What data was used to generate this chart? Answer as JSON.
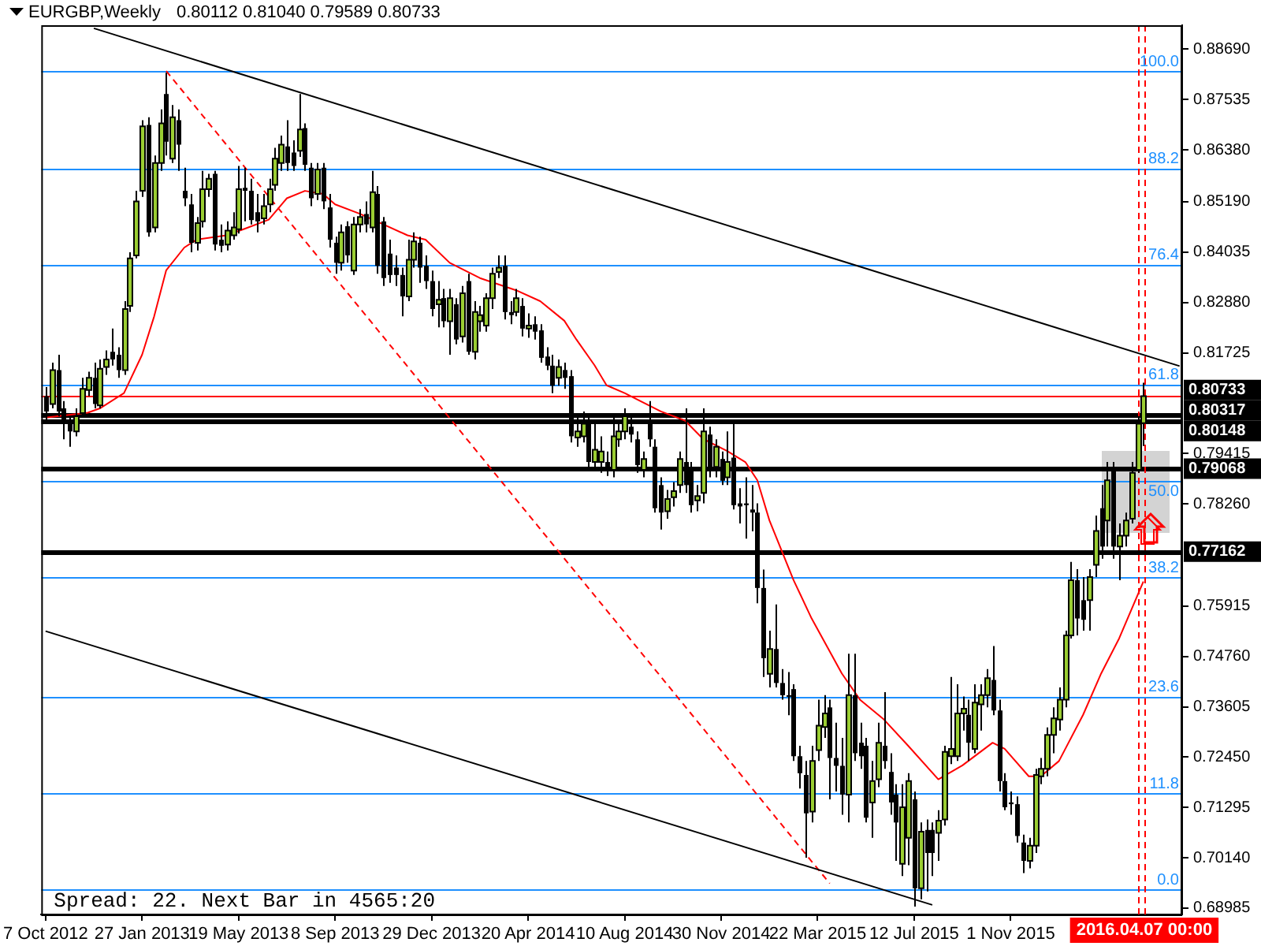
{
  "chart_data": {
    "type": "candlestick",
    "title": "EURGBP,Weekly",
    "subtitle": "0.80112 0.81040 0.79589 0.80733",
    "x": [
      "2012-10-07",
      "2012-10-14",
      "2012-10-21",
      "2012-10-28",
      "2012-11-04",
      "2012-11-11",
      "2012-11-18",
      "2012-11-25",
      "2012-12-02",
      "2012-12-09",
      "2012-12-16",
      "2012-12-23",
      "2012-12-30",
      "2013-01-06",
      "2013-01-13",
      "2013-01-20",
      "2013-01-27",
      "2013-02-03",
      "2013-02-10",
      "2013-02-17",
      "2013-02-24",
      "2013-03-03",
      "2013-03-10",
      "2013-03-17",
      "2013-03-24",
      "2013-03-31",
      "2013-04-07",
      "2013-04-14",
      "2013-04-21",
      "2013-04-28",
      "2013-05-05",
      "2013-05-12",
      "2013-05-19",
      "2013-05-26",
      "2013-06-02",
      "2013-06-09",
      "2013-06-16",
      "2013-06-23",
      "2013-06-30",
      "2013-07-07",
      "2013-07-14",
      "2013-07-21",
      "2013-07-28",
      "2013-08-04",
      "2013-08-11",
      "2013-08-18",
      "2013-08-25",
      "2013-09-01",
      "2013-09-08",
      "2013-09-15",
      "2013-09-22",
      "2013-09-29",
      "2013-10-06",
      "2013-10-13",
      "2013-10-20",
      "2013-10-27",
      "2013-11-03",
      "2013-11-10",
      "2013-11-17",
      "2013-11-24",
      "2013-12-01",
      "2013-12-08",
      "2013-12-15",
      "2013-12-22",
      "2013-12-29",
      "2014-01-05",
      "2014-01-12",
      "2014-01-19",
      "2014-01-26",
      "2014-02-02",
      "2014-02-09",
      "2014-02-16",
      "2014-02-23",
      "2014-03-02",
      "2014-03-09",
      "2014-03-16",
      "2014-03-23",
      "2014-03-30",
      "2014-04-06",
      "2014-04-13",
      "2014-04-20",
      "2014-04-27",
      "2014-05-04",
      "2014-05-11",
      "2014-05-18",
      "2014-05-25",
      "2014-06-01",
      "2014-06-08",
      "2014-06-15",
      "2014-06-22",
      "2014-06-29",
      "2014-07-06",
      "2014-07-13",
      "2014-07-20",
      "2014-07-27",
      "2014-08-03",
      "2014-08-10",
      "2014-08-17",
      "2014-08-24",
      "2014-08-31",
      "2014-09-07",
      "2014-09-14",
      "2014-09-21",
      "2014-09-28",
      "2014-10-05",
      "2014-10-12",
      "2014-10-19",
      "2014-10-26",
      "2014-11-02",
      "2014-11-09",
      "2014-11-16",
      "2014-11-23",
      "2014-11-30",
      "2014-12-07",
      "2014-12-14",
      "2014-12-21",
      "2014-12-28",
      "2015-01-04",
      "2015-01-11",
      "2015-01-18",
      "2015-01-25",
      "2015-02-01",
      "2015-02-08",
      "2015-02-15",
      "2015-02-22",
      "2015-03-01",
      "2015-03-08",
      "2015-03-15",
      "2015-03-22",
      "2015-03-29",
      "2015-04-05",
      "2015-04-12",
      "2015-04-19",
      "2015-04-26",
      "2015-05-03",
      "2015-05-10",
      "2015-05-17",
      "2015-05-24",
      "2015-05-31",
      "2015-06-07",
      "2015-06-14",
      "2015-06-21",
      "2015-06-28",
      "2015-07-05",
      "2015-07-12",
      "2015-07-19",
      "2015-07-26",
      "2015-08-02",
      "2015-08-09",
      "2015-08-16",
      "2015-08-23",
      "2015-08-30",
      "2015-09-06",
      "2015-09-13",
      "2015-09-20",
      "2015-09-27",
      "2015-10-04",
      "2015-10-11",
      "2015-10-18",
      "2015-10-25",
      "2015-11-01",
      "2015-11-08",
      "2015-11-15",
      "2015-11-22",
      "2015-11-29",
      "2015-12-06",
      "2015-12-13",
      "2015-12-20",
      "2015-12-27",
      "2016-01-03",
      "2016-01-10",
      "2016-01-17",
      "2016-01-24",
      "2016-01-31",
      "2016-02-07",
      "2016-02-14",
      "2016-02-21",
      "2016-02-28",
      "2016-03-06",
      "2016-03-13",
      "2016-03-20",
      "2016-03-27",
      "2016-04-03"
    ],
    "ohlc": [
      [
        0.8073,
        0.8094,
        0.8017,
        0.8038
      ],
      [
        0.8055,
        0.815,
        0.8045,
        0.8133
      ],
      [
        0.8133,
        0.8168,
        0.8027,
        0.8038
      ],
      [
        0.8045,
        0.8062,
        0.7974,
        0.801
      ],
      [
        0.801,
        0.8027,
        0.7957,
        0.7992
      ],
      [
        0.7992,
        0.8045,
        0.7981,
        0.8027
      ],
      [
        0.8034,
        0.8115,
        0.8024,
        0.809
      ],
      [
        0.8087,
        0.8129,
        0.8073,
        0.8115
      ],
      [
        0.8115,
        0.815,
        0.8045,
        0.8055
      ],
      [
        0.8052,
        0.8157,
        0.8045,
        0.8136
      ],
      [
        0.814,
        0.8178,
        0.8122,
        0.8157
      ],
      [
        0.8175,
        0.8228,
        0.8143,
        0.8157
      ],
      [
        0.8168,
        0.8185,
        0.8115,
        0.8133
      ],
      [
        0.8133,
        0.8291,
        0.8122,
        0.8273
      ],
      [
        0.828,
        0.8403,
        0.8266,
        0.8389
      ],
      [
        0.8396,
        0.8544,
        0.8389,
        0.852
      ],
      [
        0.8544,
        0.8706,
        0.853,
        0.8692
      ],
      [
        0.8695,
        0.8713,
        0.8439,
        0.8449
      ],
      [
        0.846,
        0.8625,
        0.8449,
        0.8608
      ],
      [
        0.8608,
        0.8731,
        0.859,
        0.8699
      ],
      [
        0.8766,
        0.8815,
        0.8625,
        0.8657
      ],
      [
        0.8618,
        0.8741,
        0.8608,
        0.8713
      ],
      [
        0.8706,
        0.8731,
        0.859,
        0.865
      ],
      [
        0.8544,
        0.8597,
        0.8509,
        0.8527
      ],
      [
        0.8513,
        0.8537,
        0.8403,
        0.8425
      ],
      [
        0.8425,
        0.8484,
        0.8407,
        0.847
      ],
      [
        0.8474,
        0.859,
        0.846,
        0.8548
      ],
      [
        0.8548,
        0.8583,
        0.853,
        0.8572
      ],
      [
        0.8583,
        0.859,
        0.8407,
        0.8421
      ],
      [
        0.8432,
        0.8467,
        0.8403,
        0.8418
      ],
      [
        0.8421,
        0.8474,
        0.8407,
        0.8453
      ],
      [
        0.8442,
        0.8495,
        0.8432,
        0.846
      ],
      [
        0.8456,
        0.8601,
        0.8446,
        0.8548
      ],
      [
        0.8551,
        0.8597,
        0.8474,
        0.8544
      ],
      [
        0.8544,
        0.8572,
        0.8467,
        0.8477
      ],
      [
        0.8495,
        0.8537,
        0.8449,
        0.8474
      ],
      [
        0.8481,
        0.8537,
        0.8467,
        0.8509
      ],
      [
        0.8513,
        0.8572,
        0.8495,
        0.8548
      ],
      [
        0.8558,
        0.8643,
        0.8544,
        0.8618
      ],
      [
        0.8608,
        0.8671,
        0.859,
        0.865
      ],
      [
        0.8646,
        0.8706,
        0.859,
        0.8608
      ],
      [
        0.8632,
        0.866,
        0.859,
        0.8601
      ],
      [
        0.8636,
        0.8766,
        0.8622,
        0.8685
      ],
      [
        0.8688,
        0.8699,
        0.859,
        0.8604
      ],
      [
        0.8597,
        0.8608,
        0.8509,
        0.8527
      ],
      [
        0.8537,
        0.8608,
        0.8523,
        0.8593
      ],
      [
        0.8597,
        0.8608,
        0.8502,
        0.852
      ],
      [
        0.8506,
        0.8537,
        0.8414,
        0.8432
      ],
      [
        0.8425,
        0.8439,
        0.8354,
        0.8379
      ],
      [
        0.8379,
        0.8467,
        0.8361,
        0.8449
      ],
      [
        0.8463,
        0.8474,
        0.8379,
        0.8396
      ],
      [
        0.8361,
        0.8484,
        0.8351,
        0.8467
      ],
      [
        0.8467,
        0.8502,
        0.8449,
        0.8484
      ],
      [
        0.8491,
        0.852,
        0.8449,
        0.8467
      ],
      [
        0.846,
        0.859,
        0.8449,
        0.8541
      ],
      [
        0.8537,
        0.8555,
        0.8354,
        0.8372
      ],
      [
        0.8474,
        0.8484,
        0.8326,
        0.8344
      ],
      [
        0.84,
        0.8432,
        0.8333,
        0.8351
      ],
      [
        0.8368,
        0.8396,
        0.8326,
        0.8351
      ],
      [
        0.8351,
        0.8368,
        0.8256,
        0.8302
      ],
      [
        0.8302,
        0.8432,
        0.8291,
        0.8386
      ],
      [
        0.8386,
        0.8449,
        0.8368,
        0.8428
      ],
      [
        0.8425,
        0.8439,
        0.8333,
        0.8368
      ],
      [
        0.8372,
        0.8396,
        0.8319,
        0.8337
      ],
      [
        0.8337,
        0.8361,
        0.8256,
        0.8273
      ],
      [
        0.8284,
        0.8337,
        0.8231,
        0.8294
      ],
      [
        0.8298,
        0.8319,
        0.8231,
        0.8245
      ],
      [
        0.8245,
        0.8319,
        0.8168,
        0.8298
      ],
      [
        0.8284,
        0.8298,
        0.8192,
        0.8203
      ],
      [
        0.821,
        0.8326,
        0.8196,
        0.8309
      ],
      [
        0.8337,
        0.8354,
        0.8168,
        0.8175
      ],
      [
        0.8175,
        0.8291,
        0.8157,
        0.8266
      ],
      [
        0.8245,
        0.828,
        0.8221,
        0.8259
      ],
      [
        0.8235,
        0.8309,
        0.8221,
        0.8298
      ],
      [
        0.8298,
        0.8368,
        0.8273,
        0.8354
      ],
      [
        0.8358,
        0.8396,
        0.8344,
        0.8368
      ],
      [
        0.8372,
        0.8396,
        0.8249,
        0.8266
      ],
      [
        0.8266,
        0.8291,
        0.8238,
        0.8259
      ],
      [
        0.8266,
        0.8319,
        0.8256,
        0.8298
      ],
      [
        0.828,
        0.8298,
        0.821,
        0.8228
      ],
      [
        0.8228,
        0.8263,
        0.8207,
        0.8235
      ],
      [
        0.8238,
        0.8256,
        0.8203,
        0.8221
      ],
      [
        0.8224,
        0.8238,
        0.815,
        0.8161
      ],
      [
        0.8164,
        0.8185,
        0.8133,
        0.8143
      ],
      [
        0.8143,
        0.8168,
        0.808,
        0.8097
      ],
      [
        0.8115,
        0.8157,
        0.8097,
        0.814
      ],
      [
        0.8133,
        0.815,
        0.809,
        0.8115
      ],
      [
        0.8119,
        0.8133,
        0.7967,
        0.7981
      ],
      [
        0.7978,
        0.8027,
        0.7957,
        0.7992
      ],
      [
        0.7981,
        0.8038,
        0.7967,
        0.801
      ],
      [
        0.801,
        0.8027,
        0.7911,
        0.7922
      ],
      [
        0.7922,
        0.801,
        0.7904,
        0.795
      ],
      [
        0.7922,
        0.7981,
        0.7897,
        0.7946
      ],
      [
        0.7922,
        0.7946,
        0.789,
        0.7904
      ],
      [
        0.7904,
        0.8027,
        0.7887,
        0.7981
      ],
      [
        0.7974,
        0.801,
        0.7957,
        0.7992
      ],
      [
        0.7992,
        0.8045,
        0.7974,
        0.8027
      ],
      [
        0.8003,
        0.8024,
        0.7967,
        0.7985
      ],
      [
        0.7974,
        0.7992,
        0.7897,
        0.7915
      ],
      [
        0.7904,
        0.7946,
        0.7887,
        0.7929
      ],
      [
        0.8017,
        0.8062,
        0.7957,
        0.7974
      ],
      [
        0.7957,
        0.7974,
        0.7806,
        0.7816
      ],
      [
        0.7869,
        0.7887,
        0.7767,
        0.7806
      ],
      [
        0.7809,
        0.7858,
        0.7792,
        0.7837
      ],
      [
        0.7841,
        0.7876,
        0.782,
        0.7855
      ],
      [
        0.7869,
        0.7946,
        0.7851,
        0.7929
      ],
      [
        0.7922,
        0.8045,
        0.7851,
        0.7869
      ],
      [
        0.7904,
        0.7922,
        0.7806,
        0.7823
      ],
      [
        0.7834,
        0.7869,
        0.7809,
        0.7844
      ],
      [
        0.7851,
        0.8045,
        0.7827,
        0.7992
      ],
      [
        0.7985,
        0.8003,
        0.7887,
        0.7904
      ],
      [
        0.7911,
        0.7974,
        0.7887,
        0.7957
      ],
      [
        0.7929,
        0.7946,
        0.7869,
        0.7879
      ],
      [
        0.7887,
        0.7992,
        0.7869,
        0.7922
      ],
      [
        0.7932,
        0.801,
        0.7813,
        0.7823
      ],
      [
        0.7827,
        0.7862,
        0.7781,
        0.782
      ],
      [
        0.7827,
        0.7887,
        0.7746,
        0.7823
      ],
      [
        0.7813,
        0.7869,
        0.7763,
        0.7806
      ],
      [
        0.7806,
        0.7827,
        0.7598,
        0.7633
      ],
      [
        0.7633,
        0.7675,
        0.7429,
        0.7472
      ],
      [
        0.7436,
        0.7535,
        0.7405,
        0.7493
      ],
      [
        0.7493,
        0.7595,
        0.7405,
        0.7415
      ],
      [
        0.7415,
        0.7447,
        0.7377,
        0.7387
      ],
      [
        0.7387,
        0.744,
        0.7341,
        0.7384
      ],
      [
        0.7401,
        0.7412,
        0.7236,
        0.7247
      ],
      [
        0.7247,
        0.7271,
        0.7173,
        0.7208
      ],
      [
        0.7204,
        0.7236,
        0.7014,
        0.7116
      ],
      [
        0.712,
        0.7271,
        0.7095,
        0.7236
      ],
      [
        0.7261,
        0.7377,
        0.7236,
        0.7317
      ],
      [
        0.7314,
        0.7387,
        0.7289,
        0.7345
      ],
      [
        0.7359,
        0.7377,
        0.7148,
        0.7243
      ],
      [
        0.7243,
        0.7324,
        0.7166,
        0.7225
      ],
      [
        0.7225,
        0.7289,
        0.7113,
        0.7159
      ],
      [
        0.7159,
        0.7482,
        0.7095,
        0.7387
      ],
      [
        0.7387,
        0.7482,
        0.7236,
        0.7254
      ],
      [
        0.7278,
        0.7324,
        0.7218,
        0.7247
      ],
      [
        0.7271,
        0.7289,
        0.7095,
        0.7106
      ],
      [
        0.7141,
        0.7236,
        0.706,
        0.719
      ],
      [
        0.7194,
        0.7324,
        0.7176,
        0.7278
      ],
      [
        0.7271,
        0.7394,
        0.7218,
        0.7236
      ],
      [
        0.7211,
        0.7254,
        0.7113,
        0.7141
      ],
      [
        0.7159,
        0.7183,
        0.7007,
        0.7095
      ],
      [
        0.7,
        0.7183,
        0.6972,
        0.713
      ],
      [
        0.706,
        0.7208,
        0.6997,
        0.719
      ],
      [
        0.7148,
        0.7166,
        0.6902,
        0.6944
      ],
      [
        0.6944,
        0.7095,
        0.6919,
        0.7074
      ],
      [
        0.7078,
        0.7102,
        0.6937,
        0.7025
      ],
      [
        0.7078,
        0.7095,
        0.6972,
        0.7025
      ],
      [
        0.7071,
        0.7123,
        0.7007,
        0.7099
      ],
      [
        0.7102,
        0.7271,
        0.7088,
        0.7257
      ],
      [
        0.7247,
        0.7429,
        0.7229,
        0.7264
      ],
      [
        0.7247,
        0.7412,
        0.7236,
        0.7345
      ],
      [
        0.7345,
        0.7384,
        0.7306,
        0.7356
      ],
      [
        0.7342,
        0.7377,
        0.7236,
        0.7278
      ],
      [
        0.7264,
        0.7412,
        0.7254,
        0.737
      ],
      [
        0.7366,
        0.7412,
        0.7306,
        0.7387
      ],
      [
        0.7387,
        0.7447,
        0.7359,
        0.7426
      ],
      [
        0.7422,
        0.75,
        0.7341,
        0.7352
      ],
      [
        0.7352,
        0.7377,
        0.7166,
        0.719
      ],
      [
        0.719,
        0.7208,
        0.7123,
        0.713
      ],
      [
        0.7141,
        0.7166,
        0.7113,
        0.7137
      ],
      [
        0.7137,
        0.7155,
        0.7049,
        0.7064
      ],
      [
        0.7049,
        0.7067,
        0.6979,
        0.7007
      ],
      [
        0.7007,
        0.706,
        0.699,
        0.7042
      ],
      [
        0.7042,
        0.7218,
        0.7025,
        0.7204
      ],
      [
        0.7201,
        0.7243,
        0.7183,
        0.7218
      ],
      [
        0.7218,
        0.7313,
        0.7201,
        0.7296
      ],
      [
        0.7296,
        0.7359,
        0.7254,
        0.7334
      ],
      [
        0.7331,
        0.7405,
        0.7306,
        0.7377
      ],
      [
        0.7377,
        0.7535,
        0.7359,
        0.7524
      ],
      [
        0.7524,
        0.7693,
        0.7517,
        0.7651
      ],
      [
        0.7651,
        0.7676,
        0.7524,
        0.7563
      ],
      [
        0.7605,
        0.7658,
        0.7535,
        0.756
      ],
      [
        0.7605,
        0.7676,
        0.7535,
        0.7658
      ],
      [
        0.7686,
        0.7799,
        0.7658,
        0.7764
      ],
      [
        0.7816,
        0.7869,
        0.77,
        0.7728
      ],
      [
        0.7788,
        0.7922,
        0.7728,
        0.788
      ],
      [
        0.7904,
        0.7922,
        0.77,
        0.7728
      ],
      [
        0.7728,
        0.7781,
        0.7651,
        0.7753
      ],
      [
        0.7753,
        0.7806,
        0.7728,
        0.7788
      ],
      [
        0.7792,
        0.7922,
        0.7781,
        0.7897
      ],
      [
        0.7904,
        0.8027,
        0.7897,
        0.801
      ],
      [
        0.80112,
        0.8104,
        0.79589,
        0.80733
      ]
    ],
    "series": [
      {
        "type": "line",
        "color": "#ff0000",
        "x": [
          "2012-10-07",
          "2012-11-25",
          "2012-12-09",
          "2013-01-06",
          "2013-01-27",
          "2013-02-10",
          "2013-02-24",
          "2013-03-17",
          "2013-03-31",
          "2013-05-05",
          "2013-05-26",
          "2013-06-23",
          "2013-07-14",
          "2013-08-04",
          "2013-08-25",
          "2013-09-08",
          "2013-10-06",
          "2013-11-03",
          "2013-12-01",
          "2013-12-22",
          "2014-01-19",
          "2014-02-23",
          "2014-04-06",
          "2014-05-04",
          "2014-06-01",
          "2014-06-15",
          "2014-07-06",
          "2014-07-20",
          "2014-08-10",
          "2014-09-21",
          "2014-10-19",
          "2014-11-09",
          "2014-12-07",
          "2014-12-28",
          "2015-01-11",
          "2015-01-25",
          "2015-02-22",
          "2015-03-15",
          "2015-04-19",
          "2015-05-10",
          "2015-06-07",
          "2015-07-05",
          "2015-08-09",
          "2015-09-06",
          "2015-10-11",
          "2015-10-25",
          "2015-11-22",
          "2015-12-06",
          "2015-12-27",
          "2016-01-24",
          "2016-02-14",
          "2016-03-06",
          "2016-04-03"
        ],
        "values": [
          0.8024,
          0.8035,
          0.8045,
          0.808,
          0.8168,
          0.8256,
          0.8362,
          0.8414,
          0.8432,
          0.8442,
          0.8457,
          0.8478,
          0.8527,
          0.8544,
          0.8537,
          0.8513,
          0.8492,
          0.8467,
          0.8442,
          0.8432,
          0.8379,
          0.8344,
          0.8316,
          0.8291,
          0.8246,
          0.8203,
          0.8144,
          0.8098,
          0.808,
          0.8038,
          0.8017,
          0.7975,
          0.7947,
          0.7922,
          0.788,
          0.7788,
          0.7651,
          0.7563,
          0.7437,
          0.7377,
          0.7331,
          0.7271,
          0.7194,
          0.7226,
          0.7278,
          0.7264,
          0.7201,
          0.7201,
          0.7236,
          0.7342,
          0.7437,
          0.7518,
          0.7648
        ]
      },
      {
        "type": "line",
        "color": "#000000",
        "x": [
          "2012-12-02",
          "2016-05-15"
        ],
        "values": [
          0.8917,
          0.8142
        ]
      },
      {
        "type": "line",
        "color": "#000000",
        "x": [
          "2012-10-07",
          "2015-08-02"
        ],
        "values": [
          0.7534,
          0.6906
        ]
      },
      {
        "type": "line",
        "color": "#ff0000",
        "line_style": "dashed",
        "x": [
          "2013-02-24",
          "2015-04-05"
        ],
        "values": [
          0.8819,
          0.6955
        ]
      }
    ],
    "xlim": [
      "2012-10-02",
      "2016-05-18"
    ],
    "xticks": [
      {
        "value": "2012-10-07",
        "label": "7 Oct 2012"
      },
      {
        "value": "2013-01-27",
        "label": "27 Jan 2013"
      },
      {
        "value": "2013-05-19",
        "label": "19 May 2013"
      },
      {
        "value": "2013-09-08",
        "label": "8 Sep 2013"
      },
      {
        "value": "2013-12-29",
        "label": "29 Dec 2013"
      },
      {
        "value": "2014-04-20",
        "label": "20 Apr 2014"
      },
      {
        "value": "2014-08-10",
        "label": "10 Aug 2014"
      },
      {
        "value": "2014-11-30",
        "label": "30 Nov 2014"
      },
      {
        "value": "2015-03-22",
        "label": "22 Mar 2015"
      },
      {
        "value": "2015-07-12",
        "label": "12 Jul 2015"
      },
      {
        "value": "2015-11-01",
        "label": "1 Nov 2015"
      }
    ],
    "ylim": [
      0.6884,
      0.8924
    ],
    "yticks": [
      {
        "value": 0.8869,
        "label": "0.88690"
      },
      {
        "value": 0.87535,
        "label": "0.87535"
      },
      {
        "value": 0.8638,
        "label": "0.86380"
      },
      {
        "value": 0.8519,
        "label": "0.85190"
      },
      {
        "value": 0.84035,
        "label": "0.84035"
      },
      {
        "value": 0.8288,
        "label": "0.82880"
      },
      {
        "value": 0.81725,
        "label": "0.81725"
      },
      {
        "value": 0.79415,
        "label": "0.79415"
      },
      {
        "value": 0.7826,
        "label": "0.78260"
      },
      {
        "value": 0.75915,
        "label": "0.75915"
      },
      {
        "value": 0.7476,
        "label": "0.74760"
      },
      {
        "value": 0.73605,
        "label": "0.73605"
      },
      {
        "value": 0.7245,
        "label": "0.72450"
      },
      {
        "value": 0.71295,
        "label": "0.71295"
      },
      {
        "value": 0.7014,
        "label": "0.70140"
      },
      {
        "value": 0.68985,
        "label": "0.68985"
      }
    ],
    "ref_lines": [
      {
        "axis": "y",
        "value": 0.8818,
        "color": "#1e90ff"
      },
      {
        "axis": "y",
        "value": 0.8596,
        "color": "#1e90ff"
      },
      {
        "axis": "y",
        "value": 0.8375,
        "color": "#1e90ff"
      },
      {
        "axis": "y",
        "value": 0.81,
        "color": "#1e90ff"
      },
      {
        "axis": "y",
        "value": 0.7879,
        "color": "#1e90ff"
      },
      {
        "axis": "y",
        "value": 0.7658,
        "color": "#1e90ff"
      },
      {
        "axis": "y",
        "value": 0.7384,
        "color": "#1e90ff"
      },
      {
        "axis": "y",
        "value": 0.7162,
        "color": "#1e90ff"
      },
      {
        "axis": "y",
        "value": 0.6941,
        "color": "#1e90ff"
      },
      {
        "axis": "y",
        "value": 0.80733,
        "label": "0.80733",
        "color": "#ff0000"
      },
      {
        "axis": "y",
        "value": 0.80317,
        "label": "0.80317",
        "color": "#000000"
      },
      {
        "axis": "y",
        "value": 0.80148,
        "label": "0.80148",
        "color": "#000000"
      },
      {
        "axis": "y",
        "value": 0.79068,
        "label": "0.79068",
        "color": "#000000"
      },
      {
        "axis": "y",
        "value": 0.77162,
        "label": "0.77162",
        "color": "#000000"
      },
      {
        "axis": "x",
        "value": "2016-03-28",
        "color": "#ff0000",
        "line_style": "dashed"
      },
      {
        "axis": "x",
        "value": "2016-04-04",
        "label": "2016.04.07 00:00",
        "color": "#ff0000",
        "line_style": "dashed"
      }
    ],
    "annotations": [
      {
        "text": "100.0",
        "x": "2016-05-18",
        "y": 0.8818
      },
      {
        "text": "88.2",
        "x": "2016-05-18",
        "y": 0.8596
      },
      {
        "text": "76.4",
        "x": "2016-05-18",
        "y": 0.8375
      },
      {
        "text": "61.8",
        "x": "2016-05-18",
        "y": 0.81
      },
      {
        "text": "50.0",
        "x": "2016-05-18",
        "y": 0.7879
      },
      {
        "text": "38.2",
        "x": "2016-05-18",
        "y": 0.7658
      },
      {
        "text": "23.6",
        "x": "2016-05-18",
        "y": 0.7384
      },
      {
        "text": "11.8",
        "x": "2016-05-18",
        "y": 0.7162
      },
      {
        "text": "0.0",
        "x": "2016-05-18",
        "y": 0.6941
      },
      "Spread: 22. Next Bar in 4565:20"
    ]
  }
}
